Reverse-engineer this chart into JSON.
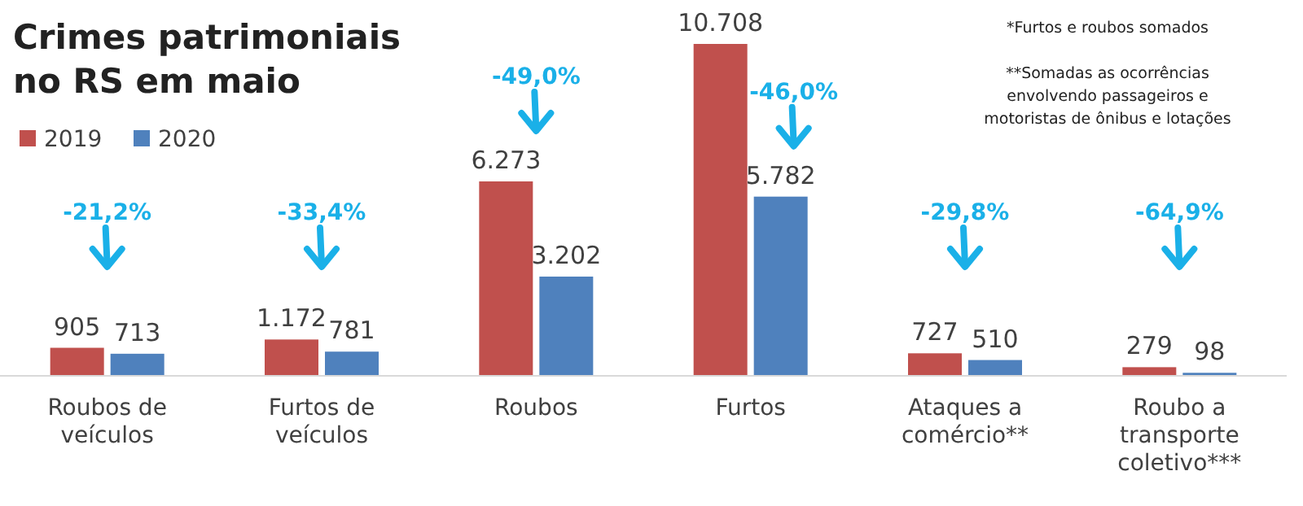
{
  "chart_data": {
    "type": "bar",
    "title": "Crimes patrimoniais no RS em maio",
    "categories": [
      "Roubos de veículos",
      "Furtos de veículos",
      "Roubos",
      "Furtos",
      "Ataques a comércio**",
      "Roubo a transporte coletivo***"
    ],
    "series": [
      {
        "name": "2019",
        "color": "#c0504d",
        "values": [
          905,
          1172,
          6273,
          10708,
          727,
          279
        ],
        "value_labels": [
          "905",
          "1.172",
          "6.273",
          "10.708",
          "727",
          "279"
        ]
      },
      {
        "name": "2020",
        "color": "#4f81bd",
        "values": [
          713,
          781,
          3202,
          5782,
          510,
          98
        ],
        "value_labels": [
          "713",
          "781",
          "3.202",
          "5.782",
          "510",
          "98"
        ]
      }
    ],
    "annotations": [
      "-21,2%",
      "-33,4%",
      "-49,0%",
      "-46,0%",
      "-29,8%",
      "-64,9%",
      "*Furtos e roubos somados",
      "**Somadas as ocorrências envolvendo passageiros e motoristas de ônibus e lotações"
    ],
    "legend": "top left"
  }
}
